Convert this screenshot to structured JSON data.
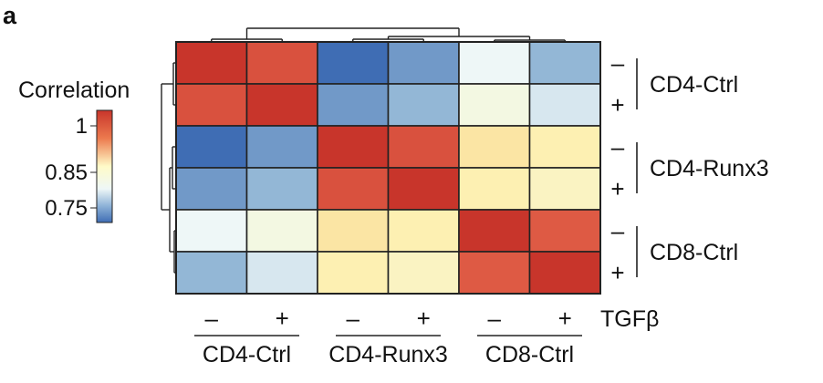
{
  "panel_label": "a",
  "colors": {
    "high": "#C8352B",
    "mid": "#FFFBC8",
    "low": "#3F6DB4",
    "near_low": "#EEF7F7",
    "grid_line": "#222222",
    "text": "#111111"
  },
  "chart_data": {
    "type": "heatmap",
    "title": "",
    "legend": {
      "title": "Correlation",
      "ticks": [
        "1",
        "0.85",
        "0.75"
      ],
      "tick_values": [
        1.0,
        0.85,
        0.75
      ],
      "range": [
        0.72,
        1.02
      ],
      "placement": "left"
    },
    "rows": [
      {
        "group": "CD4-Ctrl",
        "tgfb": "–"
      },
      {
        "group": "CD4-Ctrl",
        "tgfb": "+"
      },
      {
        "group": "CD4-Runx3",
        "tgfb": "–"
      },
      {
        "group": "CD4-Runx3",
        "tgfb": "+"
      },
      {
        "group": "CD8-Ctrl",
        "tgfb": "–"
      },
      {
        "group": "CD8-Ctrl",
        "tgfb": "+"
      }
    ],
    "columns": [
      {
        "group": "CD4-Ctrl",
        "tgfb": "–"
      },
      {
        "group": "CD4-Ctrl",
        "tgfb": "+"
      },
      {
        "group": "CD4-Runx3",
        "tgfb": "–"
      },
      {
        "group": "CD4-Runx3",
        "tgfb": "+"
      },
      {
        "group": "CD8-Ctrl",
        "tgfb": "–"
      },
      {
        "group": "CD8-Ctrl",
        "tgfb": "+"
      }
    ],
    "row_groups": [
      "CD4-Ctrl",
      "CD4-Runx3",
      "CD8-Ctrl"
    ],
    "column_groups": [
      "CD4-Ctrl",
      "CD4-Runx3",
      "CD8-Ctrl"
    ],
    "treatment_label": "TGFβ",
    "values": [
      [
        1.0,
        0.97,
        0.73,
        0.76,
        0.82,
        0.78
      ],
      [
        0.97,
        1.0,
        0.76,
        0.78,
        0.84,
        0.81
      ],
      [
        0.73,
        0.76,
        1.0,
        0.97,
        0.88,
        0.87
      ],
      [
        0.76,
        0.78,
        0.97,
        1.0,
        0.87,
        0.86
      ],
      [
        0.82,
        0.84,
        0.88,
        0.87,
        1.0,
        0.96
      ],
      [
        0.78,
        0.81,
        0.87,
        0.86,
        0.96,
        1.0
      ]
    ],
    "dendrogram": "hierarchical clustering shown on top (columns) and left (rows)"
  }
}
